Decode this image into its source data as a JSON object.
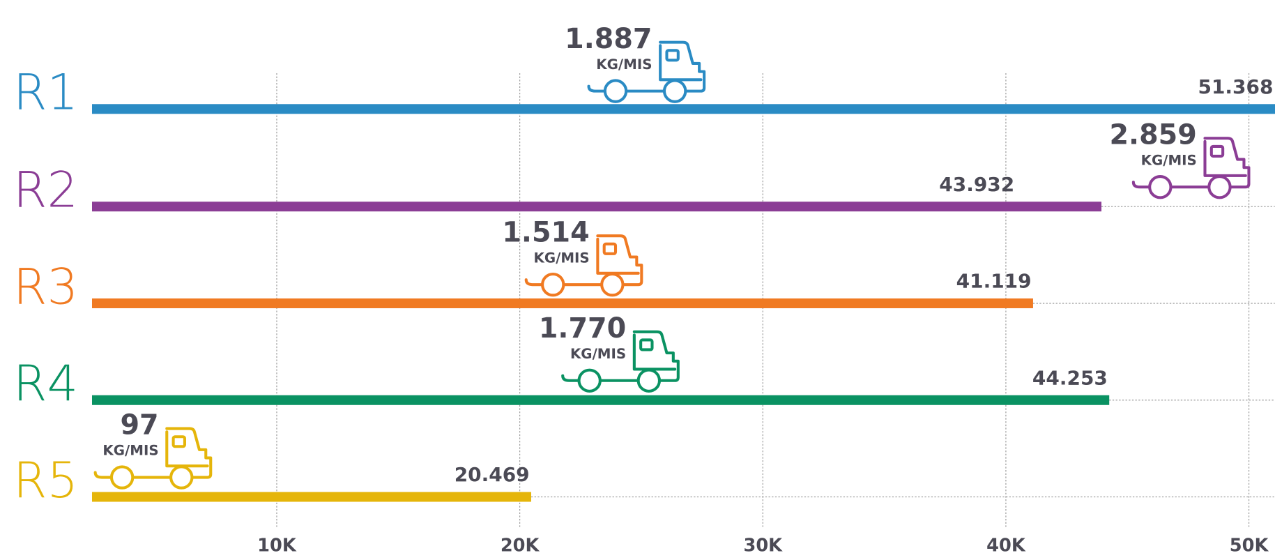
{
  "chart_data": {
    "type": "bar",
    "orientation": "horizontal",
    "categories": [
      "R1",
      "R2",
      "R3",
      "R4",
      "R5"
    ],
    "values": [
      51368,
      43932,
      41119,
      44253,
      20469
    ],
    "value_labels": [
      "51.368",
      "43.932",
      "41.119",
      "44.253",
      "20.469"
    ],
    "colors": [
      "#2a8bc4",
      "#8b3d95",
      "#f07a22",
      "#0a9262",
      "#e5b50a"
    ],
    "kg_per_mile": [
      1887,
      2859,
      1514,
      1770,
      97
    ],
    "kg_per_mile_labels": [
      "1.887",
      "2.859",
      "1.514",
      "1.770",
      "97"
    ],
    "unit_label": "KG/MIS",
    "xlim": [
      2400,
      51000
    ],
    "xticks": [
      {
        "value": 10000,
        "label": "10K"
      },
      {
        "value": 20000,
        "label": "20K"
      },
      {
        "value": 30000,
        "label": "30K"
      },
      {
        "value": 40000,
        "label": "40K"
      },
      {
        "value": 50000,
        "label": "50K"
      }
    ],
    "grid": true
  }
}
